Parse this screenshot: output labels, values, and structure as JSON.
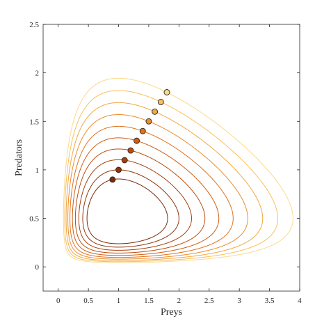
{
  "chart_data": {
    "type": "line",
    "title": "",
    "xlabel": "Preys",
    "ylabel": "Predators",
    "xlim": [
      -0.25,
      4
    ],
    "ylim": [
      -0.25,
      2.5
    ],
    "xticks": [
      "0",
      "0.5",
      "1",
      "1.5",
      "2",
      "2.5",
      "3",
      "3.5",
      "4"
    ],
    "yticks": [
      "0",
      "0.5",
      "1",
      "1.5",
      "2",
      "2.5"
    ],
    "grid": false,
    "legend": "none",
    "model": {
      "alpha": 1,
      "beta": 2,
      "gamma": 1,
      "delta": 1
    },
    "series": [
      {
        "x0": 0.9,
        "y0": 0.9,
        "color": "#7a2a06"
      },
      {
        "x0": 1.0,
        "y0": 1.0,
        "color": "#8f3407"
      },
      {
        "x0": 1.1,
        "y0": 1.1,
        "color": "#a63f08"
      },
      {
        "x0": 1.2,
        "y0": 1.2,
        "color": "#bd4c0b"
      },
      {
        "x0": 1.3,
        "y0": 1.3,
        "color": "#d05c12"
      },
      {
        "x0": 1.4,
        "y0": 1.4,
        "color": "#e0721c"
      },
      {
        "x0": 1.5,
        "y0": 1.5,
        "color": "#ec8c2c"
      },
      {
        "x0": 1.6,
        "y0": 1.6,
        "color": "#f4a640"
      },
      {
        "x0": 1.7,
        "y0": 1.7,
        "color": "#f9c05c"
      },
      {
        "x0": 1.8,
        "y0": 1.8,
        "color": "#fdd98a"
      }
    ]
  }
}
